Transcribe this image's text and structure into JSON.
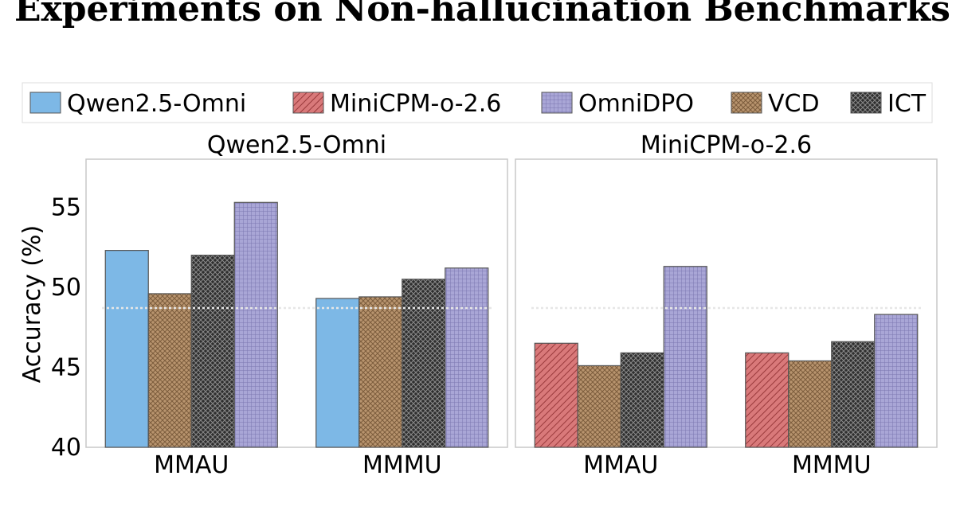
{
  "page": {
    "title": "Experiments on Non-hallucination Benchmarks"
  },
  "chart_data": {
    "type": "bar",
    "ylabel": "Accuracy (%)",
    "ylim": [
      40,
      58
    ],
    "yticks": [
      40,
      45,
      50,
      55
    ],
    "legend": {
      "placement": "top",
      "entries": [
        {
          "name": "Qwen2.5-Omni",
          "color": "#7db8e6",
          "pattern": "solid"
        },
        {
          "name": "MiniCPM-o-2.6",
          "color": "#d9797a",
          "pattern": "diagonal-hatch"
        },
        {
          "name": "OmniDPO",
          "color": "#a9a6d6",
          "pattern": "dense-grid"
        },
        {
          "name": "VCD",
          "color": "#b8946e",
          "pattern": "cross-hatch"
        },
        {
          "name": "ICT",
          "color": "#3a3a3a",
          "pattern": "checker"
        }
      ]
    },
    "panels": [
      {
        "title": "Qwen2.5-Omni",
        "categories": [
          "MMAU",
          "MMMU"
        ],
        "series": [
          {
            "name": "Qwen2.5-Omni",
            "values": [
              52.3,
              49.3
            ]
          },
          {
            "name": "VCD",
            "values": [
              49.6,
              49.4
            ]
          },
          {
            "name": "ICT",
            "values": [
              52.0,
              50.5
            ]
          },
          {
            "name": "OmniDPO",
            "values": [
              55.3,
              51.2
            ]
          }
        ],
        "reference_line": 48.7
      },
      {
        "title": "MiniCPM-o-2.6",
        "categories": [
          "MMAU",
          "MMMU"
        ],
        "series": [
          {
            "name": "MiniCPM-o-2.6",
            "values": [
              46.5,
              45.9
            ]
          },
          {
            "name": "VCD",
            "values": [
              45.1,
              45.4
            ]
          },
          {
            "name": "ICT",
            "values": [
              45.9,
              46.6
            ]
          },
          {
            "name": "OmniDPO",
            "values": [
              51.3,
              48.3
            ]
          }
        ],
        "reference_line": 48.7
      }
    ]
  }
}
